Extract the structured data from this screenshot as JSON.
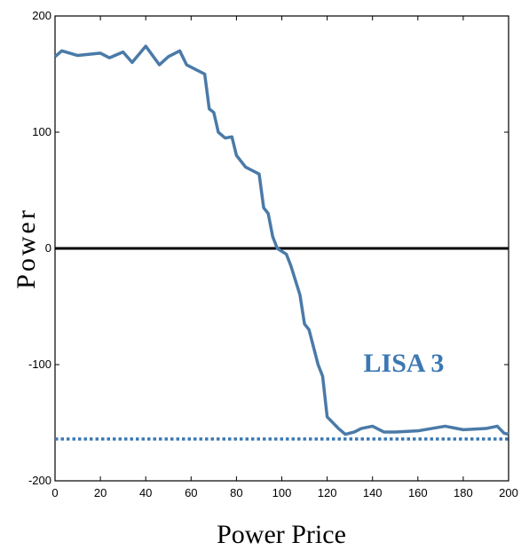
{
  "chart_data": {
    "type": "line",
    "x_label": "Power Price",
    "y_label": "Power",
    "annotation": "LISA 3",
    "xlim": [
      0,
      200
    ],
    "ylim": [
      -200,
      200
    ],
    "xticks": [
      0,
      20,
      40,
      60,
      80,
      100,
      120,
      140,
      160,
      180,
      200
    ],
    "yticks": [
      -200,
      -100,
      0,
      100,
      200
    ],
    "reference_lines": [
      {
        "value": 0,
        "color": "#000000",
        "style": "solid"
      },
      {
        "value": -164,
        "color": "#3b78b3",
        "style": "dotted"
      }
    ],
    "series": [
      {
        "color": "#4a7aa8",
        "x": [
          0,
          3,
          10,
          20,
          24,
          30,
          34,
          40,
          46,
          50,
          55,
          58,
          62,
          66,
          68,
          70,
          72,
          75,
          78,
          80,
          84,
          90,
          92,
          94,
          96,
          98,
          102,
          104,
          108,
          110,
          112,
          116,
          118,
          120,
          125,
          128,
          132,
          135,
          140,
          145,
          150,
          160,
          172,
          180,
          190,
          195,
          198,
          200
        ],
        "values": [
          165,
          170,
          166,
          168,
          164,
          169,
          160,
          174,
          158,
          165,
          170,
          158,
          154,
          150,
          120,
          117,
          100,
          95,
          96,
          80,
          70,
          64,
          35,
          30,
          10,
          0,
          -5,
          -15,
          -40,
          -65,
          -70,
          -100,
          -110,
          -145,
          -155,
          -160,
          -158,
          -155,
          -153,
          -158,
          -158,
          -157,
          -153,
          -156,
          -155,
          -153,
          -159,
          -160
        ]
      }
    ]
  }
}
